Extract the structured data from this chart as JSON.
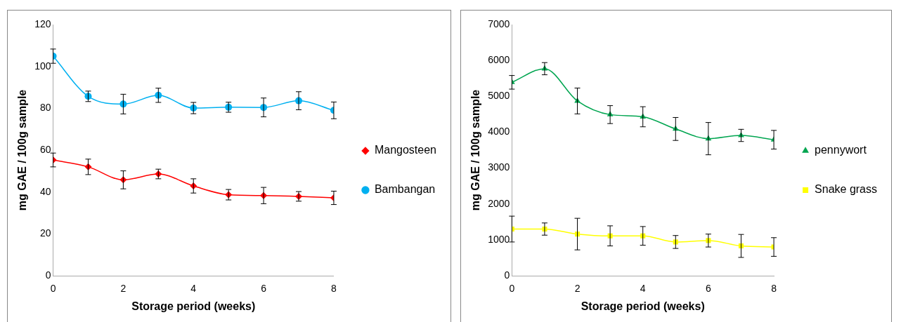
{
  "chart_data": [
    {
      "type": "line",
      "xlabel": "Storage period (weeks)",
      "ylabel": "mg GAE / 100g sample",
      "x": [
        0,
        1,
        2,
        3,
        4,
        5,
        6,
        7,
        8
      ],
      "xlim": [
        0,
        8
      ],
      "xticks": [
        0,
        2,
        4,
        6,
        8
      ],
      "ylim": [
        0,
        120
      ],
      "yticks": [
        0,
        20,
        40,
        60,
        80,
        100,
        120
      ],
      "grid": false,
      "legend": "right",
      "series": [
        {
          "name": "Mangosteen",
          "color": "#ff0000",
          "marker": "diamond",
          "values": [
            55.3,
            52,
            45.8,
            48.6,
            42.9,
            38.7,
            38.3,
            37.9,
            37.2
          ],
          "errors": [
            3.3,
            3.7,
            4.3,
            2.3,
            3.4,
            2.5,
            3.9,
            2.3,
            3.2
          ]
        },
        {
          "name": "Bambangan",
          "color": "#00b0f0",
          "marker": "circle",
          "values": [
            104.9,
            85.7,
            82,
            86.2,
            80.1,
            80.5,
            80.4,
            83.6,
            79
          ],
          "errors": [
            3.4,
            2.5,
            4.7,
            3.4,
            2.7,
            2.4,
            4.5,
            4.3,
            4
          ]
        }
      ]
    },
    {
      "type": "line",
      "xlabel": "Storage period (weeks)",
      "ylabel": "mg GAE / 100g sample",
      "x": [
        0,
        1,
        2,
        3,
        4,
        5,
        6,
        7,
        8
      ],
      "xlim": [
        0,
        8
      ],
      "xticks": [
        0,
        2,
        4,
        6,
        8
      ],
      "ylim": [
        0,
        7000
      ],
      "yticks": [
        0,
        1000,
        2000,
        3000,
        4000,
        5000,
        6000,
        7000
      ],
      "grid": false,
      "legend": "right",
      "series": [
        {
          "name": "pennywort",
          "color": "#00a550",
          "marker": "triangle",
          "values": [
            5390,
            5770,
            4870,
            4490,
            4430,
            4090,
            3820,
            3910,
            3790
          ],
          "errors": [
            190,
            170,
            360,
            250,
            280,
            320,
            450,
            170,
            260
          ]
        },
        {
          "name": "Snake grass",
          "color": "#ffff00",
          "marker": "square",
          "values": [
            1300,
            1300,
            1160,
            1110,
            1110,
            940,
            980,
            830,
            800
          ],
          "errors": [
            360,
            170,
            440,
            280,
            260,
            180,
            180,
            320,
            260
          ]
        }
      ]
    }
  ]
}
